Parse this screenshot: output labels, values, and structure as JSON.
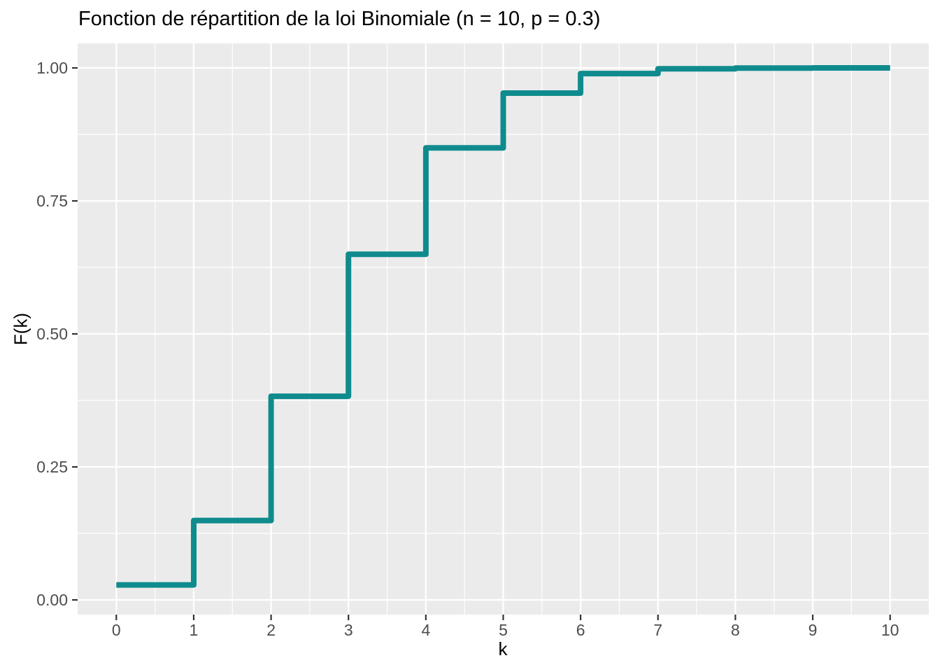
{
  "chart_data": {
    "type": "line",
    "style": "step",
    "title": "Fonction de répartition de la loi Binomiale (n = 10, p = 0.3)",
    "xlabel": "k",
    "ylabel": "F(k)",
    "x": [
      0,
      1,
      2,
      3,
      4,
      5,
      6,
      7,
      8,
      9,
      10
    ],
    "y": [
      0.0282,
      0.1493,
      0.3828,
      0.6496,
      0.8497,
      0.9527,
      0.9894,
      0.9984,
      0.9998,
      1.0,
      1.0
    ],
    "x_tick_labels": [
      "0",
      "1",
      "2",
      "3",
      "4",
      "5",
      "6",
      "7",
      "8",
      "9",
      "10"
    ],
    "x_tick_values": [
      0,
      1,
      2,
      3,
      4,
      5,
      6,
      7,
      8,
      9,
      10
    ],
    "x_minor_tick_values": [
      0.5,
      1.5,
      2.5,
      3.5,
      4.5,
      5.5,
      6.5,
      7.5,
      8.5,
      9.5
    ],
    "y_tick_labels": [
      "0.00",
      "0.25",
      "0.50",
      "0.75",
      "1.00"
    ],
    "y_tick_values": [
      0,
      0.25,
      0.5,
      0.75,
      1
    ],
    "y_minor_tick_values": [
      0.125,
      0.375,
      0.625,
      0.875
    ],
    "xlim": [
      -0.5,
      10.5
    ],
    "ylim": [
      -0.0276,
      1.0461
    ],
    "grid": "major-and-minor",
    "legend_position": "none",
    "colors": {
      "line": "#0F8B8D",
      "panel_background": "#EBEBEB",
      "grid": "#FFFFFF",
      "tick_mark": "#333333",
      "tick_label": "#4D4D4D",
      "title_text": "#000000",
      "plot_background": "#FFFFFF"
    }
  }
}
